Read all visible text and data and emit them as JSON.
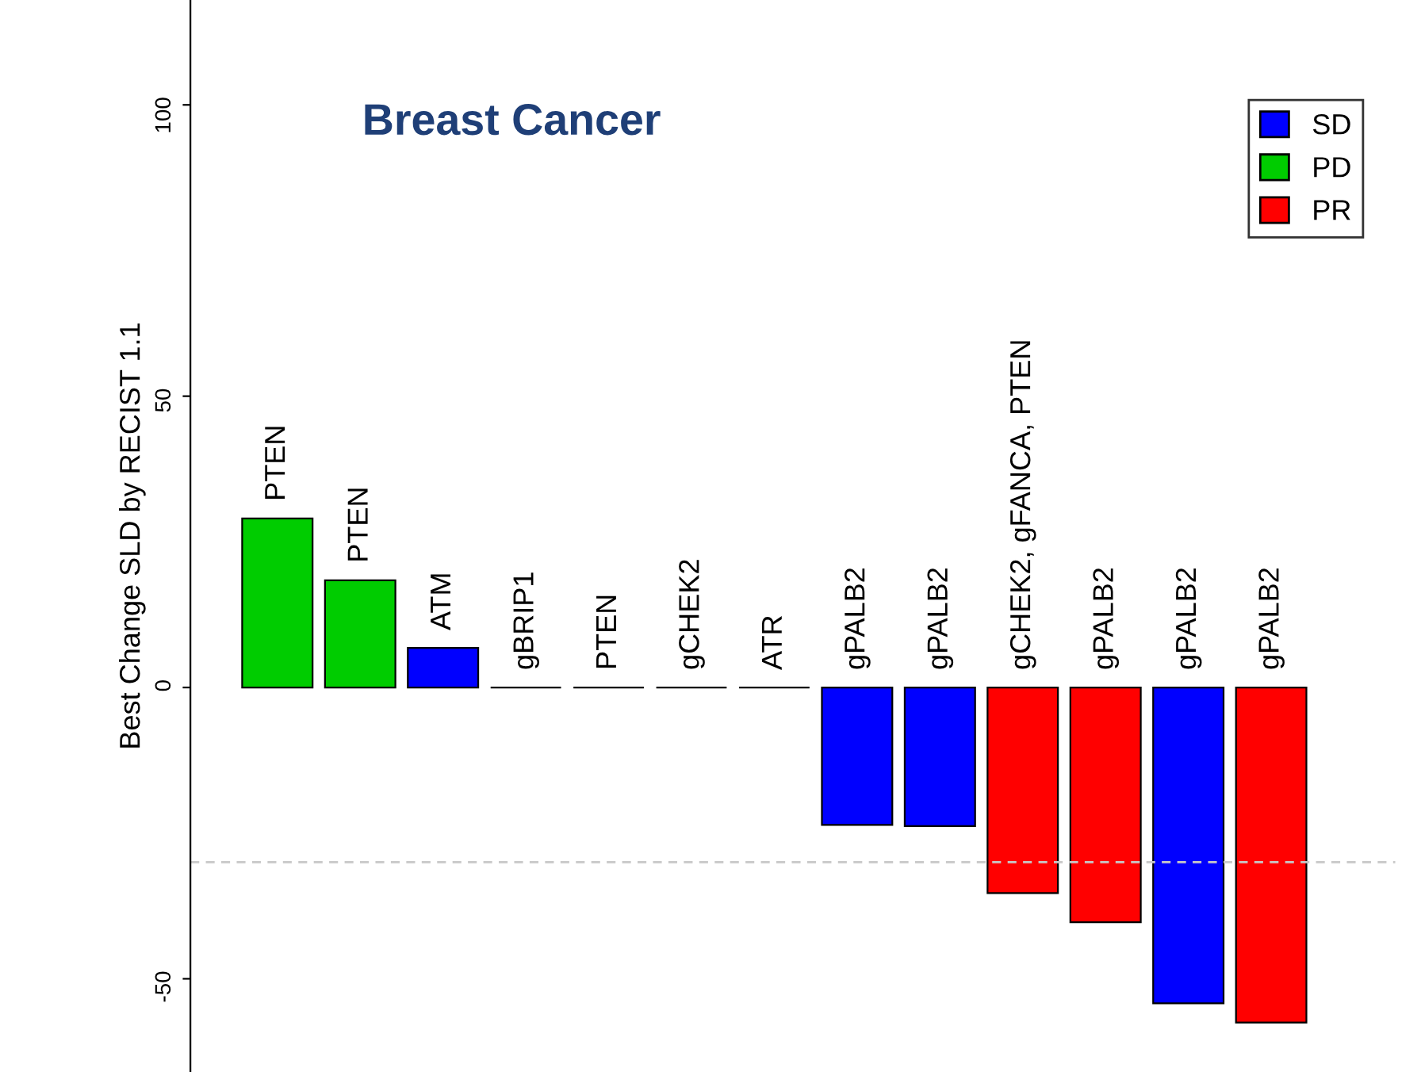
{
  "chart_data": {
    "type": "bar",
    "title": "Breast Cancer",
    "ylabel": "Best Change SLD by RECIST 1.1",
    "categories": [
      "PTEN",
      "PTEN",
      "ATM",
      "gBRIP1",
      "PTEN",
      "gCHEK2",
      "ATR",
      "gPALB2",
      "gPALB2",
      "gCHEK2, gFANCA, PTEN",
      "gPALB2",
      "gPALB2",
      "gPALB2"
    ],
    "series": [
      {
        "name": "SD",
        "color": "#0000ff",
        "values": [
          null,
          null,
          6.8,
          null,
          null,
          null,
          null,
          -23.6,
          -23.8,
          null,
          null,
          -54.2,
          null
        ]
      },
      {
        "name": "PD",
        "color": "#00cc00",
        "values": [
          29,
          18.4,
          null,
          null,
          null,
          null,
          null,
          null,
          null,
          null,
          null,
          null,
          null
        ]
      },
      {
        "name": "PR",
        "color": "#ff0000",
        "values": [
          null,
          null,
          null,
          null,
          null,
          null,
          null,
          null,
          null,
          -35.3,
          -40.3,
          null,
          -57.5
        ]
      },
      {
        "values": [
          null,
          null,
          null,
          0,
          0,
          0,
          0,
          null,
          null,
          null,
          null,
          null,
          null
        ]
      }
    ],
    "ylim": [
      -66,
      118
    ],
    "yticks": [
      -50,
      0,
      50,
      100
    ],
    "ref_lines": [
      {
        "axis": "y",
        "value": -30,
        "color": "#c8c8c8",
        "line_style": "dashed"
      }
    ],
    "legend": "top right",
    "grid": false
  }
}
